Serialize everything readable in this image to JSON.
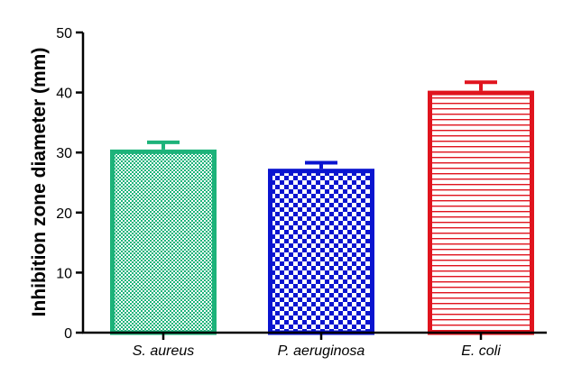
{
  "chart_data": {
    "type": "bar",
    "title": "",
    "xlabel": "",
    "ylabel": "Inhibition zone diameter (mm)",
    "categories": [
      "S. aureus",
      "P. aeruginosa",
      "E. coli"
    ],
    "values": [
      30.5,
      27.3,
      40.3
    ],
    "errors": [
      1.2,
      1.0,
      1.4
    ],
    "ylim": [
      0,
      50
    ],
    "yticks": [
      0,
      10,
      20,
      30,
      40,
      50
    ],
    "grid": false,
    "legend": "none",
    "colors": [
      "#1DB37A",
      "#0A14D0",
      "#E0141E"
    ],
    "fill_patterns": [
      "fine-checker",
      "checker",
      "horizontal-lines"
    ]
  }
}
